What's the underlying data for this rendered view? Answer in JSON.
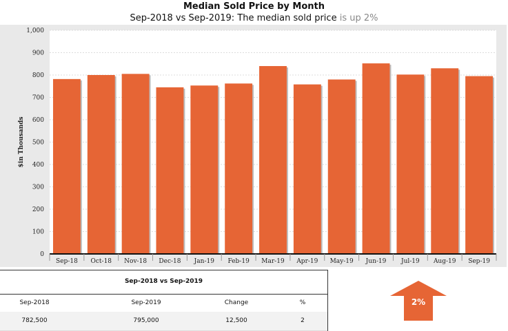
{
  "title": "Median Sold Price by Month",
  "subtitle": {
    "main": "Sep-2018 vs Sep-2019: The median sold price",
    "trend": "is up 2%"
  },
  "colors": {
    "bar": "#e66535",
    "plot_bg": "#ffffff",
    "frame_bg": "#e9e9e9",
    "arrow": "#e66535"
  },
  "chart_data": {
    "type": "bar",
    "categories": [
      "Sep-18",
      "Oct-18",
      "Nov-18",
      "Dec-18",
      "Jan-19",
      "Feb-19",
      "Mar-19",
      "Apr-19",
      "May-19",
      "Jun-19",
      "Jul-19",
      "Aug-19",
      "Sep-19"
    ],
    "values": [
      782,
      800,
      805,
      745,
      753,
      762,
      840,
      758,
      780,
      852,
      802,
      830,
      795
    ],
    "title": "Median Sold Price by Month",
    "xlabel": "",
    "ylabel": "$in Thousands",
    "ylim": [
      0,
      1000
    ],
    "yticks": [
      "0",
      "100",
      "200",
      "300",
      "400",
      "500",
      "600",
      "700",
      "800",
      "900",
      "1,000"
    ],
    "grid": true,
    "legend": "none"
  },
  "summary": {
    "heading": "Sep-2018 vs Sep-2019",
    "columns": [
      "Sep-2018",
      "Sep-2019",
      "Change",
      "%"
    ],
    "values": [
      "782,500",
      "795,000",
      "12,500",
      "2"
    ]
  },
  "indicator": {
    "label": "2%",
    "direction": "up",
    "icon": "up-arrow-icon"
  }
}
